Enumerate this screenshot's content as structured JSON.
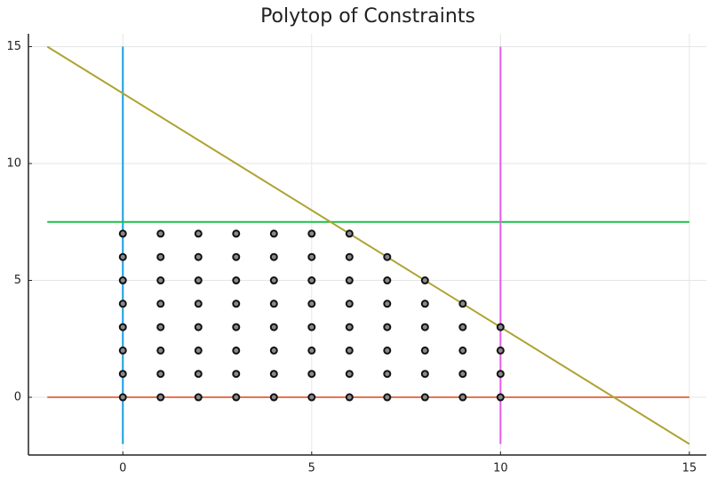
{
  "chart_data": {
    "type": "line",
    "title": "Polytop of Constraints",
    "xlim": [
      -2.5,
      15.45
    ],
    "ylim": [
      -2.47,
      15.55
    ],
    "xticks": [
      0,
      5,
      10,
      15
    ],
    "yticks": [
      0,
      5,
      10,
      15
    ],
    "grid": true,
    "series": [
      {
        "type": "line",
        "color": "#1a9de0",
        "x": [
          0,
          0
        ],
        "values": [
          -2,
          15
        ]
      },
      {
        "type": "line",
        "color": "#e8744e",
        "x": [
          -2,
          15
        ],
        "values": [
          0,
          0
        ]
      },
      {
        "type": "line",
        "color": "#1cbf4a",
        "x": [
          -2,
          15
        ],
        "values": [
          7.5,
          7.5
        ]
      },
      {
        "type": "line",
        "color": "#e55ce8",
        "x": [
          10,
          10
        ],
        "values": [
          -2,
          15
        ]
      },
      {
        "type": "line",
        "color": "#aea332",
        "x": [
          -2,
          15
        ],
        "values": [
          15,
          -2
        ]
      },
      {
        "type": "scatter",
        "color": "#8a8a8a",
        "x": [
          0,
          0,
          0,
          0,
          0,
          0,
          0,
          0,
          1,
          1,
          1,
          1,
          1,
          1,
          1,
          1,
          2,
          2,
          2,
          2,
          2,
          2,
          2,
          2,
          3,
          3,
          3,
          3,
          3,
          3,
          3,
          3,
          4,
          4,
          4,
          4,
          4,
          4,
          4,
          4,
          5,
          5,
          5,
          5,
          5,
          5,
          5,
          5,
          6,
          6,
          6,
          6,
          6,
          6,
          6,
          6,
          7,
          7,
          7,
          7,
          7,
          7,
          7,
          8,
          8,
          8,
          8,
          8,
          8,
          9,
          9,
          9,
          9,
          9,
          10,
          10,
          10,
          10
        ],
        "values": [
          0,
          1,
          2,
          3,
          4,
          5,
          6,
          7,
          0,
          1,
          2,
          3,
          4,
          5,
          6,
          7,
          0,
          1,
          2,
          3,
          4,
          5,
          6,
          7,
          0,
          1,
          2,
          3,
          4,
          5,
          6,
          7,
          0,
          1,
          2,
          3,
          4,
          5,
          6,
          7,
          0,
          1,
          2,
          3,
          4,
          5,
          6,
          7,
          0,
          1,
          2,
          3,
          4,
          5,
          6,
          7,
          0,
          1,
          2,
          3,
          4,
          5,
          6,
          0,
          1,
          2,
          3,
          4,
          5,
          0,
          1,
          2,
          3,
          4,
          0,
          1,
          2,
          3
        ]
      }
    ]
  }
}
